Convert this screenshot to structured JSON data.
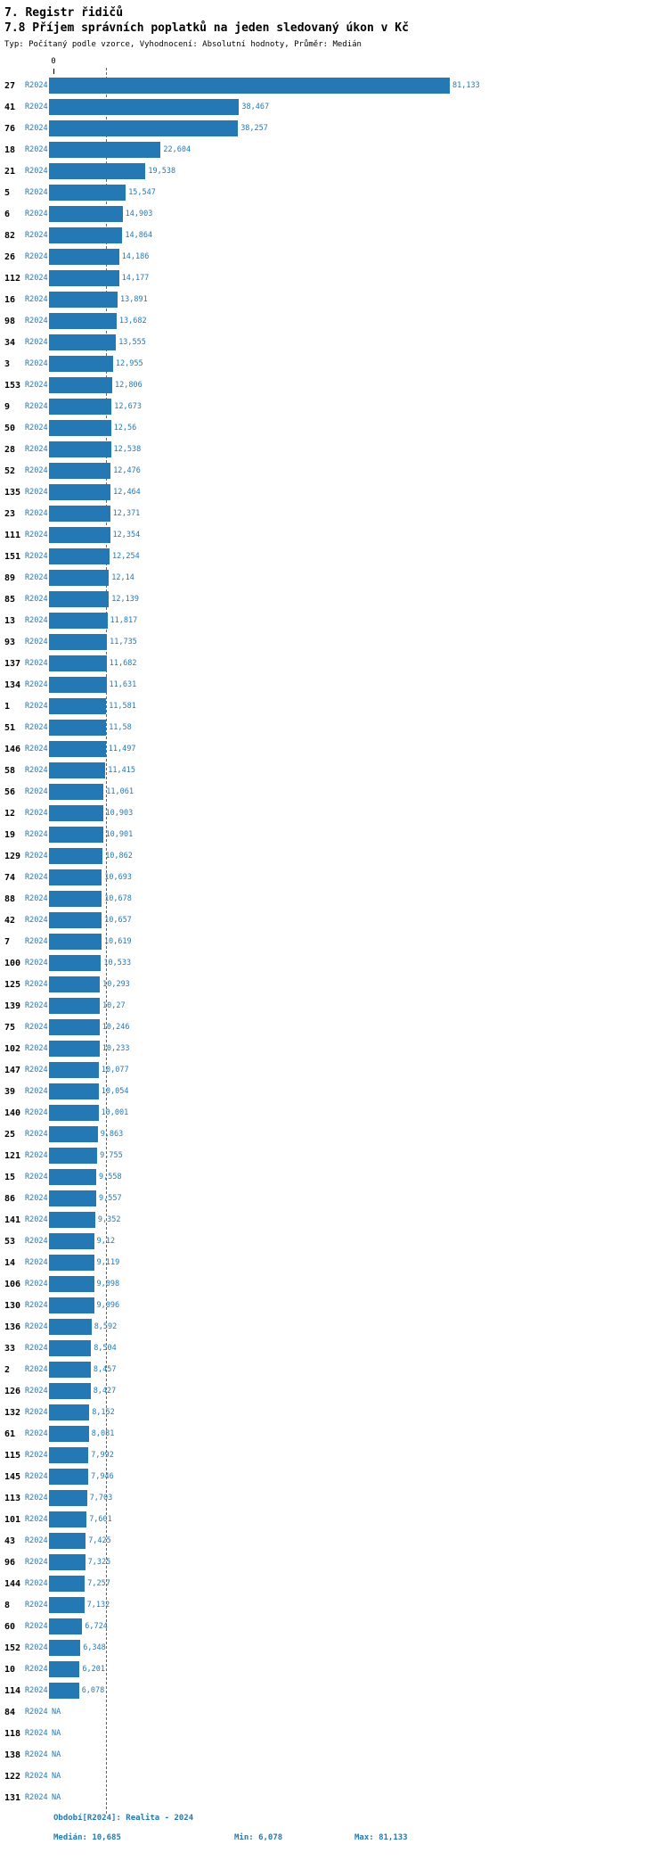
{
  "chart_data": {
    "type": "bar",
    "orientation": "horizontal",
    "title": "7. Registr řidičů",
    "subtitle": "7.8 Příjem správních poplatků na jeden sledovaný úkon v Kč",
    "meta": "Typ: Počítaný podle vzorce, Vyhodnocení: Absolutní hodnoty, Průměr: Medián",
    "series_label": "R2024",
    "axis": {
      "origin_label": "0",
      "x_min": 0,
      "x_max": 81.133
    },
    "median": 10.685,
    "bar_color": "#2478b4",
    "period_note": "Období[R2024]: Realita - 2024",
    "stats": {
      "median": "Medián: 10,685",
      "min": "Min: 6,078",
      "max": "Max: 81,133"
    },
    "rows": [
      {
        "label": "27",
        "value": 81.133,
        "display": "81,133"
      },
      {
        "label": "41",
        "value": 38.467,
        "display": "38,467"
      },
      {
        "label": "76",
        "value": 38.257,
        "display": "38,257"
      },
      {
        "label": "18",
        "value": 22.604,
        "display": "22,604"
      },
      {
        "label": "21",
        "value": 19.538,
        "display": "19,538"
      },
      {
        "label": "5",
        "value": 15.547,
        "display": "15,547"
      },
      {
        "label": "6",
        "value": 14.903,
        "display": "14,903"
      },
      {
        "label": "82",
        "value": 14.864,
        "display": "14,864"
      },
      {
        "label": "26",
        "value": 14.186,
        "display": "14,186"
      },
      {
        "label": "112",
        "value": 14.177,
        "display": "14,177"
      },
      {
        "label": "16",
        "value": 13.891,
        "display": "13,891"
      },
      {
        "label": "98",
        "value": 13.682,
        "display": "13,682"
      },
      {
        "label": "34",
        "value": 13.555,
        "display": "13,555"
      },
      {
        "label": "3",
        "value": 12.955,
        "display": "12,955"
      },
      {
        "label": "153",
        "value": 12.806,
        "display": "12,806"
      },
      {
        "label": "9",
        "value": 12.673,
        "display": "12,673"
      },
      {
        "label": "50",
        "value": 12.56,
        "display": "12,56"
      },
      {
        "label": "28",
        "value": 12.538,
        "display": "12,538"
      },
      {
        "label": "52",
        "value": 12.476,
        "display": "12,476"
      },
      {
        "label": "135",
        "value": 12.464,
        "display": "12,464"
      },
      {
        "label": "23",
        "value": 12.371,
        "display": "12,371"
      },
      {
        "label": "111",
        "value": 12.354,
        "display": "12,354"
      },
      {
        "label": "151",
        "value": 12.254,
        "display": "12,254"
      },
      {
        "label": "89",
        "value": 12.14,
        "display": "12,14"
      },
      {
        "label": "85",
        "value": 12.139,
        "display": "12,139"
      },
      {
        "label": "13",
        "value": 11.817,
        "display": "11,817"
      },
      {
        "label": "93",
        "value": 11.735,
        "display": "11,735"
      },
      {
        "label": "137",
        "value": 11.682,
        "display": "11,682"
      },
      {
        "label": "134",
        "value": 11.631,
        "display": "11,631"
      },
      {
        "label": "1",
        "value": 11.581,
        "display": "11,581"
      },
      {
        "label": "51",
        "value": 11.58,
        "display": "11,58"
      },
      {
        "label": "146",
        "value": 11.497,
        "display": "11,497"
      },
      {
        "label": "58",
        "value": 11.415,
        "display": "11,415"
      },
      {
        "label": "56",
        "value": 11.061,
        "display": "11,061"
      },
      {
        "label": "12",
        "value": 10.903,
        "display": "10,903"
      },
      {
        "label": "19",
        "value": 10.901,
        "display": "10,901"
      },
      {
        "label": "129",
        "value": 10.862,
        "display": "10,862"
      },
      {
        "label": "74",
        "value": 10.693,
        "display": "10,693"
      },
      {
        "label": "88",
        "value": 10.678,
        "display": "10,678"
      },
      {
        "label": "42",
        "value": 10.657,
        "display": "10,657"
      },
      {
        "label": "7",
        "value": 10.619,
        "display": "10,619"
      },
      {
        "label": "100",
        "value": 10.533,
        "display": "10,533"
      },
      {
        "label": "125",
        "value": 10.293,
        "display": "10,293"
      },
      {
        "label": "139",
        "value": 10.27,
        "display": "10,27"
      },
      {
        "label": "75",
        "value": 10.246,
        "display": "10,246"
      },
      {
        "label": "102",
        "value": 10.233,
        "display": "10,233"
      },
      {
        "label": "147",
        "value": 10.077,
        "display": "10,077"
      },
      {
        "label": "39",
        "value": 10.054,
        "display": "10,054"
      },
      {
        "label": "140",
        "value": 10.001,
        "display": "10,001"
      },
      {
        "label": "25",
        "value": 9.863,
        "display": "9,863"
      },
      {
        "label": "121",
        "value": 9.755,
        "display": "9,755"
      },
      {
        "label": "15",
        "value": 9.558,
        "display": "9,558"
      },
      {
        "label": "86",
        "value": 9.557,
        "display": "9,557"
      },
      {
        "label": "141",
        "value": 9.352,
        "display": "9,352"
      },
      {
        "label": "53",
        "value": 9.12,
        "display": "9,12"
      },
      {
        "label": "14",
        "value": 9.119,
        "display": "9,119"
      },
      {
        "label": "106",
        "value": 9.098,
        "display": "9,098"
      },
      {
        "label": "130",
        "value": 9.096,
        "display": "9,096"
      },
      {
        "label": "136",
        "value": 8.592,
        "display": "8,592"
      },
      {
        "label": "33",
        "value": 8.504,
        "display": "8,504"
      },
      {
        "label": "2",
        "value": 8.457,
        "display": "8,457"
      },
      {
        "label": "126",
        "value": 8.427,
        "display": "8,427"
      },
      {
        "label": "132",
        "value": 8.152,
        "display": "8,152"
      },
      {
        "label": "61",
        "value": 8.081,
        "display": "8,081"
      },
      {
        "label": "115",
        "value": 7.992,
        "display": "7,992"
      },
      {
        "label": "145",
        "value": 7.946,
        "display": "7,946"
      },
      {
        "label": "113",
        "value": 7.703,
        "display": "7,703"
      },
      {
        "label": "101",
        "value": 7.601,
        "display": "7,601"
      },
      {
        "label": "43",
        "value": 7.425,
        "display": "7,425"
      },
      {
        "label": "96",
        "value": 7.325,
        "display": "7,325"
      },
      {
        "label": "144",
        "value": 7.257,
        "display": "7,257"
      },
      {
        "label": "8",
        "value": 7.132,
        "display": "7,132"
      },
      {
        "label": "60",
        "value": 6.724,
        "display": "6,724"
      },
      {
        "label": "152",
        "value": 6.348,
        "display": "6,348"
      },
      {
        "label": "10",
        "value": 6.201,
        "display": "6,201"
      },
      {
        "label": "114",
        "value": 6.078,
        "display": "6,078"
      },
      {
        "label": "84",
        "value": null,
        "display": "NA"
      },
      {
        "label": "118",
        "value": null,
        "display": "NA"
      },
      {
        "label": "138",
        "value": null,
        "display": "NA"
      },
      {
        "label": "122",
        "value": null,
        "display": "NA"
      },
      {
        "label": "131",
        "value": null,
        "display": "NA"
      }
    ]
  }
}
